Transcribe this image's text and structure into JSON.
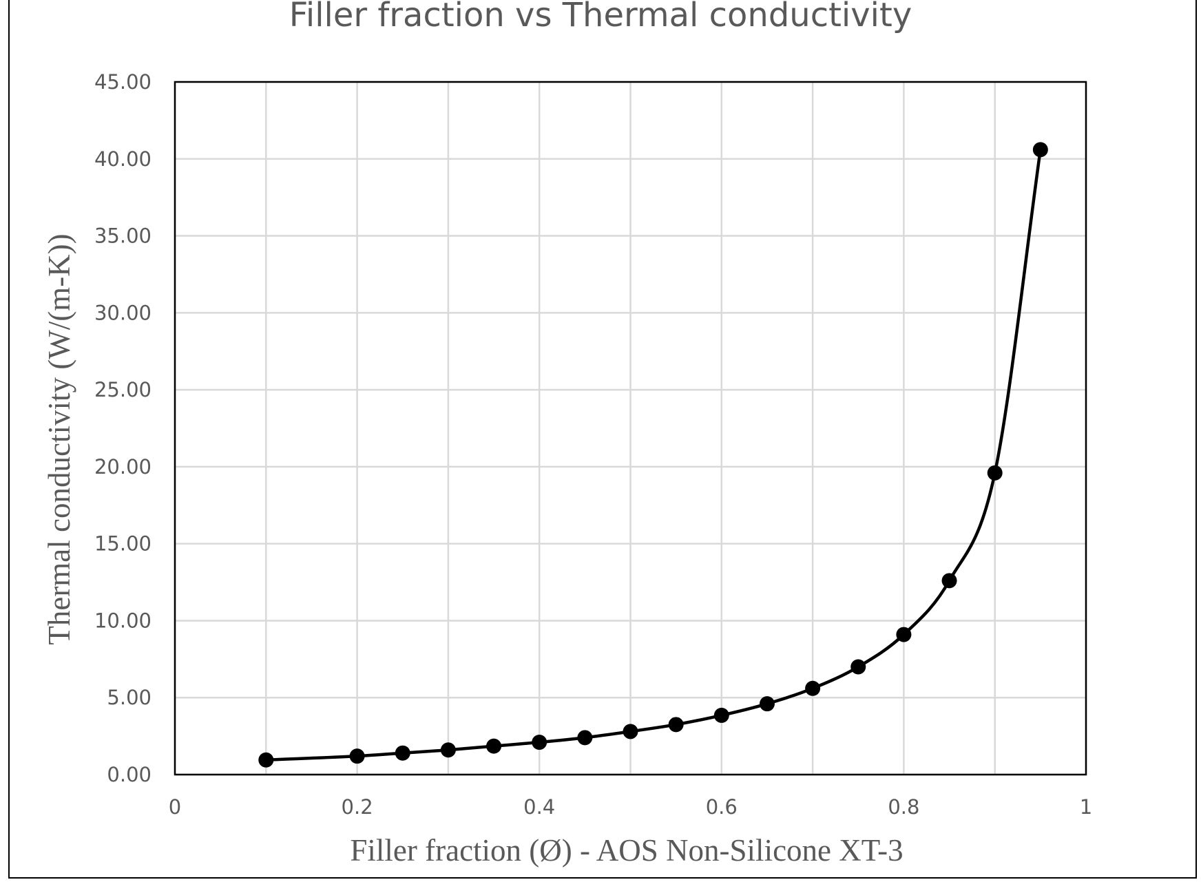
{
  "chart_data": {
    "type": "line",
    "title": "Filler fraction vs Thermal conductivity",
    "xlabel": "Filler fraction (Ø) - AOS Non-Silicone XT-3",
    "ylabel": "Thermal conductivity (W/(m-K))",
    "xlim": [
      0,
      1
    ],
    "ylim": [
      0,
      45
    ],
    "x_ticks": [
      0,
      0.2,
      0.4,
      0.6,
      0.8,
      1
    ],
    "x_tick_labels": [
      "0",
      "0.2",
      "0.4",
      "0.6",
      "0.8",
      "1"
    ],
    "y_ticks": [
      0,
      5,
      10,
      15,
      20,
      25,
      30,
      35,
      40,
      45
    ],
    "y_tick_labels": [
      "0.00",
      "5.00",
      "10.00",
      "15.00",
      "20.00",
      "25.00",
      "30.00",
      "35.00",
      "40.00",
      "45.00"
    ],
    "x_minor_gridlines": [
      0.1,
      0.3,
      0.5,
      0.7,
      0.9
    ],
    "grid": true,
    "legend": "none",
    "line_style": "smooth",
    "marker": "circle",
    "series": [
      {
        "x": [
          0.1,
          0.2,
          0.25,
          0.3,
          0.35,
          0.4,
          0.45,
          0.5,
          0.55,
          0.6,
          0.65,
          0.7,
          0.75,
          0.8,
          0.85,
          0.9,
          0.95
        ],
        "values": [
          0.95,
          1.2,
          1.4,
          1.6,
          1.85,
          2.1,
          2.4,
          2.8,
          3.25,
          3.85,
          4.6,
          5.6,
          7.0,
          9.1,
          12.6,
          19.6,
          40.6
        ],
        "color": "#000000"
      }
    ],
    "colors": {
      "grid": "#d9d9d9",
      "text": "#595959",
      "axis": "#000000"
    }
  }
}
